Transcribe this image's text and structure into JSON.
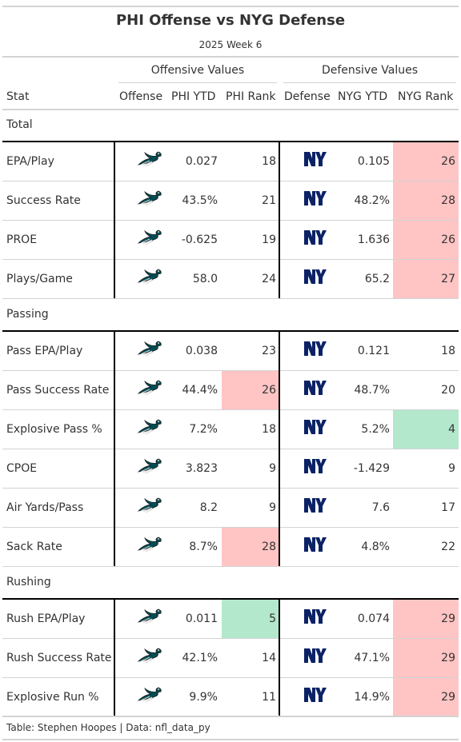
{
  "title": "PHI Offense vs NYG Defense",
  "subtitle": "2025 Week 6",
  "spanners": {
    "offense": "Offensive Values",
    "defense": "Defensive Values"
  },
  "columns": {
    "stat": "Stat",
    "offense": "Offense",
    "phi_ytd": "PHI YTD",
    "phi_rank": "PHI Rank",
    "defense": "Defense",
    "nyg_ytd": "NYG YTD",
    "nyg_rank": "NYG Rank"
  },
  "icons": {
    "offense_logo": "eagles-logo-icon",
    "defense_logo": "giants-ny-logo-icon"
  },
  "colors": {
    "bad_rank": "#ffc4c4",
    "good_rank": "#b3e8cc",
    "eagles_green": "#004c54",
    "giants_blue": "#0b2265"
  },
  "groups": [
    {
      "label": "Total",
      "rows": [
        {
          "stat": "EPA/Play",
          "phi_ytd": "0.027",
          "phi_rank": "18",
          "phi_rank_color": "",
          "nyg_ytd": "0.105",
          "nyg_rank": "26",
          "nyg_rank_color": "#ffc4c4"
        },
        {
          "stat": "Success Rate",
          "phi_ytd": "43.5%",
          "phi_rank": "21",
          "phi_rank_color": "",
          "nyg_ytd": "48.2%",
          "nyg_rank": "28",
          "nyg_rank_color": "#ffc4c4"
        },
        {
          "stat": "PROE",
          "phi_ytd": "-0.625",
          "phi_rank": "19",
          "phi_rank_color": "",
          "nyg_ytd": "1.636",
          "nyg_rank": "26",
          "nyg_rank_color": "#ffc4c4"
        },
        {
          "stat": "Plays/Game",
          "phi_ytd": "58.0",
          "phi_rank": "24",
          "phi_rank_color": "",
          "nyg_ytd": "65.2",
          "nyg_rank": "27",
          "nyg_rank_color": "#ffc4c4"
        }
      ]
    },
    {
      "label": "Passing",
      "rows": [
        {
          "stat": "Pass EPA/Play",
          "phi_ytd": "0.038",
          "phi_rank": "23",
          "phi_rank_color": "",
          "nyg_ytd": "0.121",
          "nyg_rank": "18",
          "nyg_rank_color": ""
        },
        {
          "stat": "Pass Success Rate",
          "phi_ytd": "44.4%",
          "phi_rank": "26",
          "phi_rank_color": "#ffc4c4",
          "nyg_ytd": "48.7%",
          "nyg_rank": "20",
          "nyg_rank_color": ""
        },
        {
          "stat": "Explosive Pass %",
          "phi_ytd": "7.2%",
          "phi_rank": "18",
          "phi_rank_color": "",
          "nyg_ytd": "5.2%",
          "nyg_rank": "4",
          "nyg_rank_color": "#b3e8cc"
        },
        {
          "stat": "CPOE",
          "phi_ytd": "3.823",
          "phi_rank": "9",
          "phi_rank_color": "",
          "nyg_ytd": "-1.429",
          "nyg_rank": "9",
          "nyg_rank_color": ""
        },
        {
          "stat": "Air Yards/Pass",
          "phi_ytd": "8.2",
          "phi_rank": "9",
          "phi_rank_color": "",
          "nyg_ytd": "7.6",
          "nyg_rank": "17",
          "nyg_rank_color": ""
        },
        {
          "stat": "Sack Rate",
          "phi_ytd": "8.7%",
          "phi_rank": "28",
          "phi_rank_color": "#ffc4c4",
          "nyg_ytd": "4.8%",
          "nyg_rank": "22",
          "nyg_rank_color": ""
        }
      ]
    },
    {
      "label": "Rushing",
      "rows": [
        {
          "stat": "Rush EPA/Play",
          "phi_ytd": "0.011",
          "phi_rank": "5",
          "phi_rank_color": "#b3e8cc",
          "nyg_ytd": "0.074",
          "nyg_rank": "29",
          "nyg_rank_color": "#ffc4c4"
        },
        {
          "stat": "Rush Success Rate",
          "phi_ytd": "42.1%",
          "phi_rank": "14",
          "phi_rank_color": "",
          "nyg_ytd": "47.1%",
          "nyg_rank": "29",
          "nyg_rank_color": "#ffc4c4"
        },
        {
          "stat": "Explosive Run %",
          "phi_ytd": "9.9%",
          "phi_rank": "11",
          "phi_rank_color": "",
          "nyg_ytd": "14.9%",
          "nyg_rank": "29",
          "nyg_rank_color": "#ffc4c4"
        }
      ]
    }
  ],
  "source_note": "Table: Stephen Hoopes | Data: nfl_data_py"
}
